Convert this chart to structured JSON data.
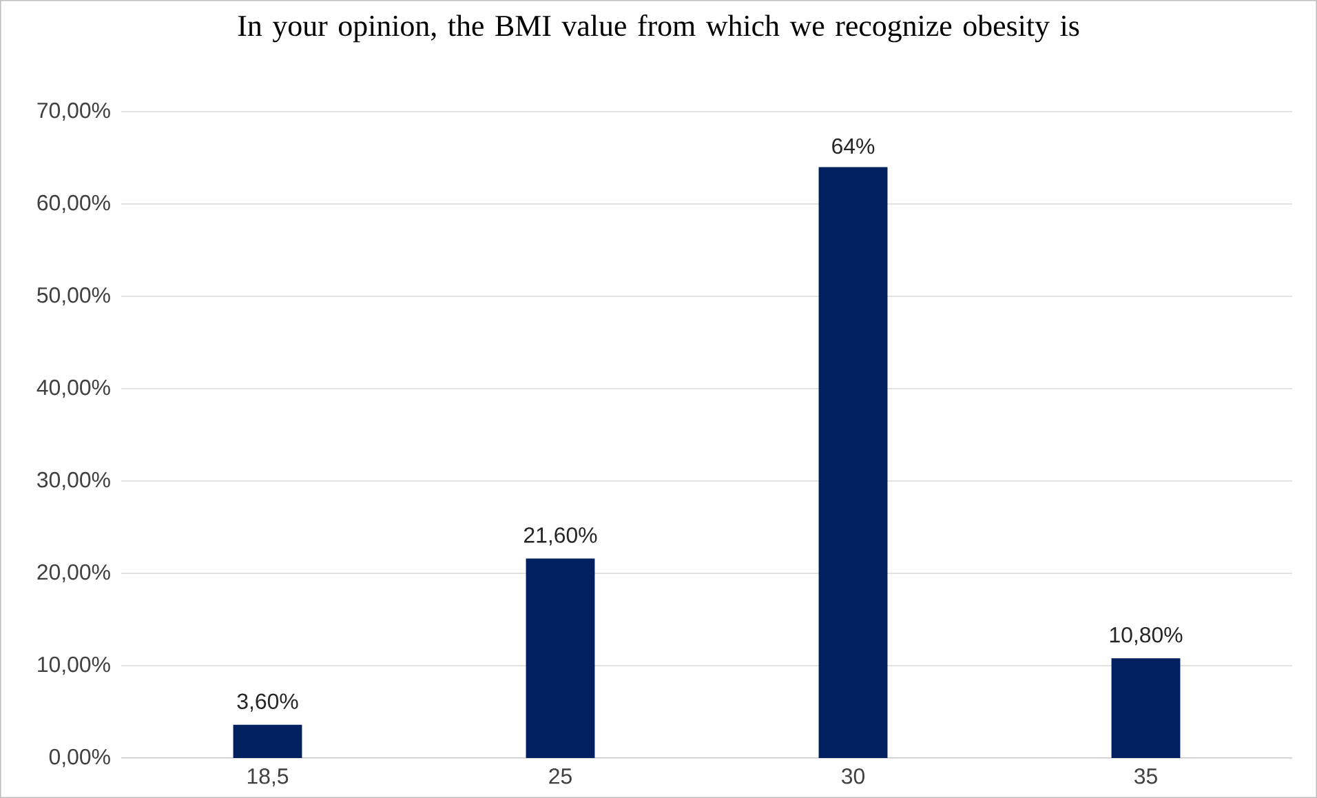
{
  "chart_data": {
    "type": "bar",
    "title": "In your opinion, the BMI value from which we recognize obesity is",
    "categories": [
      "18,5",
      "25",
      "30",
      "35"
    ],
    "values": [
      3.6,
      21.6,
      64,
      10.8
    ],
    "value_labels": [
      "3,60%",
      "21,60%",
      "64%",
      "10,80%"
    ],
    "color": "#002060",
    "ylim": [
      0,
      70
    ],
    "yticks": [
      {
        "value": 0,
        "label": "0,00%"
      },
      {
        "value": 10,
        "label": "10,00%"
      },
      {
        "value": 20,
        "label": "20,00%"
      },
      {
        "value": 30,
        "label": "30,00%"
      },
      {
        "value": 40,
        "label": "40,00%"
      },
      {
        "value": 50,
        "label": "50,00%"
      },
      {
        "value": 60,
        "label": "60,00%"
      },
      {
        "value": 70,
        "label": "70,00%"
      }
    ],
    "grid": "y"
  }
}
